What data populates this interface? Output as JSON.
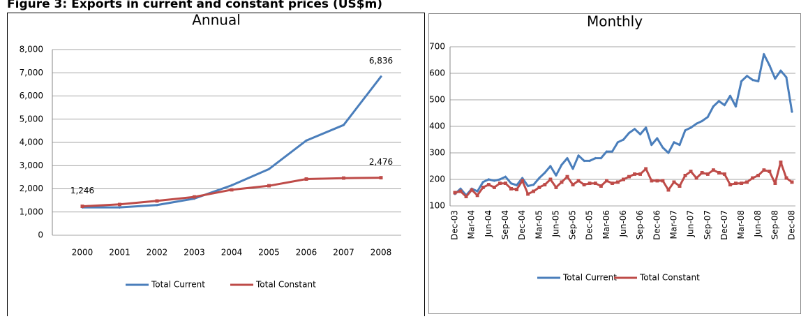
{
  "title": "Figure 3: Exports in current and constant prices (US$m)",
  "chart_data": [
    {
      "type": "line",
      "title": "Annual",
      "categories": [
        "2000",
        "2001",
        "2002",
        "2003",
        "2004",
        "2005",
        "2006",
        "2007",
        "2008"
      ],
      "series": [
        {
          "name": "Total Current",
          "color": "#4a7ebb",
          "values": [
            1200,
            1200,
            1300,
            1580,
            2150,
            2850,
            4080,
            4750,
            6836
          ],
          "value_labels": [
            null,
            null,
            null,
            null,
            null,
            null,
            null,
            null,
            "6,836"
          ]
        },
        {
          "name": "Total Constant",
          "color": "#be4b48",
          "values": [
            1246,
            1330,
            1480,
            1650,
            1960,
            2130,
            2420,
            2460,
            2476
          ],
          "value_labels": [
            "1,246",
            null,
            null,
            null,
            null,
            null,
            null,
            null,
            "2,476"
          ]
        }
      ],
      "ylim": [
        0,
        8000
      ],
      "yticks": [
        0,
        {
          "value": 1000,
          "label": "1,000"
        },
        {
          "value": 2000,
          "label": "2,000"
        },
        {
          "value": 3000,
          "label": "3,000"
        },
        {
          "value": 4000,
          "label": "4,000"
        },
        {
          "value": 5000,
          "label": "5,000"
        },
        {
          "value": 6000,
          "label": "6,000"
        },
        {
          "value": 7000,
          "label": "7,000"
        },
        {
          "value": 8000,
          "label": "8,000"
        }
      ],
      "grid": true,
      "legend": "bottom"
    },
    {
      "type": "line",
      "title": "Monthly",
      "categories": [
        "Dec-03",
        null,
        null,
        "Mar-04",
        null,
        null,
        "Jun-04",
        null,
        null,
        "Sep-04",
        null,
        null,
        "Dec-04",
        null,
        null,
        "Mar-05",
        null,
        null,
        "Jun-05",
        null,
        null,
        "Sep-05",
        null,
        null,
        "Dec-05",
        null,
        null,
        "Mar-06",
        null,
        null,
        "Jun-06",
        null,
        null,
        "Sep-06",
        null,
        null,
        "Dec-06",
        null,
        null,
        "Mar-07",
        null,
        null,
        "Jun-07",
        null,
        null,
        "Sep-07",
        null,
        null,
        "Dec-07",
        null,
        null,
        "Mar-08",
        null,
        null,
        "Jun-08",
        null,
        null,
        "Sep-08",
        null,
        null,
        "Dec-08"
      ],
      "series": [
        {
          "name": "Total Current",
          "color": "#4a7ebb",
          "values": [
            145,
            165,
            140,
            165,
            155,
            190,
            200,
            195,
            200,
            210,
            185,
            178,
            205,
            175,
            180,
            205,
            225,
            250,
            215,
            255,
            280,
            240,
            290,
            270,
            270,
            280,
            280,
            305,
            305,
            340,
            350,
            375,
            390,
            370,
            395,
            330,
            355,
            320,
            300,
            340,
            330,
            385,
            395,
            410,
            420,
            435,
            475,
            495,
            480,
            515,
            475,
            570,
            590,
            575,
            570,
            672,
            630,
            580,
            610,
            585,
            455
          ]
        },
        {
          "name": "Total Constant",
          "color": "#be4b48",
          "values": [
            150,
            155,
            135,
            160,
            140,
            170,
            180,
            170,
            185,
            185,
            165,
            162,
            195,
            145,
            155,
            170,
            180,
            200,
            170,
            190,
            210,
            180,
            195,
            180,
            185,
            185,
            175,
            195,
            185,
            190,
            200,
            210,
            220,
            220,
            240,
            195,
            195,
            195,
            160,
            190,
            175,
            215,
            230,
            205,
            225,
            220,
            235,
            225,
            220,
            180,
            185,
            185,
            190,
            205,
            215,
            235,
            230,
            185,
            265,
            205,
            190
          ]
        }
      ],
      "ylim": [
        100,
        700
      ],
      "yticks": [
        100,
        200,
        300,
        400,
        500,
        600,
        700
      ],
      "grid": true,
      "legend": "bottom"
    }
  ]
}
